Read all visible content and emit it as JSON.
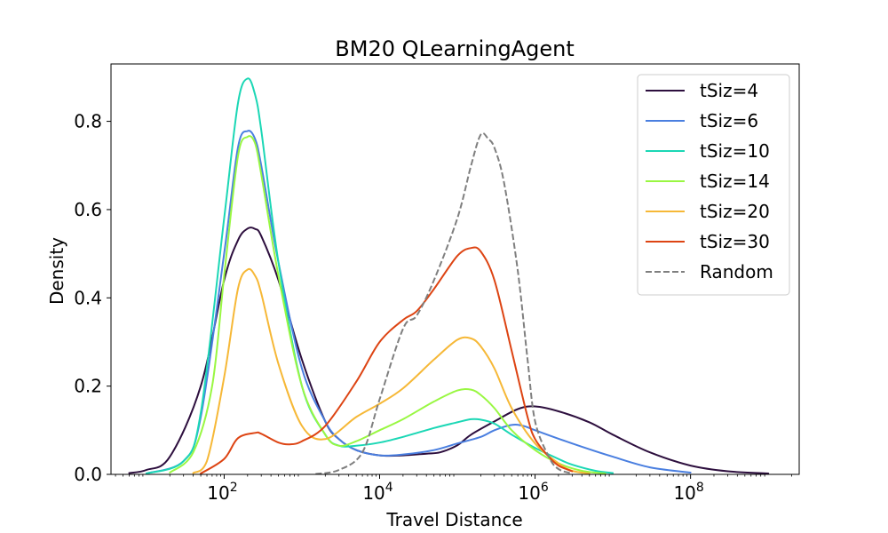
{
  "chart_data": {
    "type": "line",
    "title": "BM20 QLearningAgent",
    "xlabel": "Travel Distance",
    "ylabel": "Density",
    "x_scale": "log",
    "xlim": [
      3.5,
      2500000000.0
    ],
    "ylim": [
      0,
      0.93
    ],
    "x_ticks": [
      {
        "value": 100,
        "base": "10",
        "exp": "2"
      },
      {
        "value": 10000,
        "base": "10",
        "exp": "4"
      },
      {
        "value": 1000000,
        "base": "10",
        "exp": "6"
      },
      {
        "value": 100000000,
        "base": "10",
        "exp": "8"
      }
    ],
    "y_ticks": [
      {
        "value": 0.0,
        "label": "0.0"
      },
      {
        "value": 0.2,
        "label": "0.2"
      },
      {
        "value": 0.4,
        "label": "0.4"
      },
      {
        "value": 0.6,
        "label": "0.6"
      },
      {
        "value": 0.8,
        "label": "0.8"
      }
    ],
    "grid": false,
    "legend_position": "top-right",
    "series": [
      {
        "name": "tSiz=4",
        "color": "#2d0f3e",
        "dash": "solid",
        "points": [
          [
            6,
            0.003
          ],
          [
            10,
            0.01
          ],
          [
            20,
            0.04
          ],
          [
            50,
            0.2
          ],
          [
            100,
            0.44
          ],
          [
            150,
            0.53
          ],
          [
            200,
            0.557
          ],
          [
            250,
            0.556
          ],
          [
            300,
            0.54
          ],
          [
            500,
            0.44
          ],
          [
            1000,
            0.26
          ],
          [
            2000,
            0.12
          ],
          [
            3000,
            0.08
          ],
          [
            5000,
            0.055
          ],
          [
            10000,
            0.043
          ],
          [
            20000,
            0.043
          ],
          [
            40000,
            0.047
          ],
          [
            60000,
            0.05
          ],
          [
            100000,
            0.066
          ],
          [
            150000,
            0.09
          ],
          [
            300000,
            0.12
          ],
          [
            600000,
            0.148
          ],
          [
            1000000,
            0.154
          ],
          [
            2000000,
            0.143
          ],
          [
            5000000,
            0.118
          ],
          [
            10000000,
            0.09
          ],
          [
            30000000,
            0.05
          ],
          [
            100000000,
            0.02
          ],
          [
            300000000,
            0.007
          ],
          [
            1000000000.0,
            0.002
          ]
        ]
      },
      {
        "name": "tSiz=6",
        "color": "#4a7fe0",
        "dash": "solid",
        "points": [
          [
            10,
            0.002
          ],
          [
            30,
            0.03
          ],
          [
            50,
            0.13
          ],
          [
            100,
            0.5
          ],
          [
            150,
            0.74
          ],
          [
            200,
            0.778
          ],
          [
            250,
            0.76
          ],
          [
            300,
            0.7
          ],
          [
            500,
            0.48
          ],
          [
            1000,
            0.24
          ],
          [
            2000,
            0.12
          ],
          [
            3000,
            0.08
          ],
          [
            5000,
            0.055
          ],
          [
            10000,
            0.043
          ],
          [
            20000,
            0.045
          ],
          [
            50000,
            0.055
          ],
          [
            100000,
            0.07
          ],
          [
            200000,
            0.085
          ],
          [
            300000,
            0.1
          ],
          [
            500000,
            0.112
          ],
          [
            700000,
            0.11
          ],
          [
            1000000,
            0.1
          ],
          [
            3000000,
            0.07
          ],
          [
            10000000,
            0.04
          ],
          [
            30000000,
            0.016
          ],
          [
            100000000,
            0.004
          ]
        ]
      },
      {
        "name": "tSiz=10",
        "color": "#1bd7b5",
        "dash": "solid",
        "points": [
          [
            10,
            0.002
          ],
          [
            30,
            0.03
          ],
          [
            50,
            0.14
          ],
          [
            100,
            0.58
          ],
          [
            150,
            0.84
          ],
          [
            200,
            0.897
          ],
          [
            250,
            0.86
          ],
          [
            300,
            0.78
          ],
          [
            500,
            0.48
          ],
          [
            1000,
            0.2
          ],
          [
            2000,
            0.09
          ],
          [
            3000,
            0.065
          ],
          [
            5000,
            0.065
          ],
          [
            10000,
            0.072
          ],
          [
            20000,
            0.085
          ],
          [
            50000,
            0.105
          ],
          [
            100000,
            0.118
          ],
          [
            150000,
            0.125
          ],
          [
            200000,
            0.124
          ],
          [
            300000,
            0.115
          ],
          [
            500000,
            0.09
          ],
          [
            1000000,
            0.06
          ],
          [
            2000000,
            0.035
          ],
          [
            3000000,
            0.022
          ],
          [
            6000000,
            0.008
          ],
          [
            10000000,
            0.003
          ]
        ]
      },
      {
        "name": "tSiz=14",
        "color": "#99f742",
        "dash": "solid",
        "points": [
          [
            20,
            0.004
          ],
          [
            40,
            0.05
          ],
          [
            70,
            0.2
          ],
          [
            100,
            0.45
          ],
          [
            150,
            0.72
          ],
          [
            200,
            0.765
          ],
          [
            250,
            0.75
          ],
          [
            300,
            0.68
          ],
          [
            500,
            0.45
          ],
          [
            1000,
            0.2
          ],
          [
            2000,
            0.09
          ],
          [
            3000,
            0.065
          ],
          [
            5000,
            0.075
          ],
          [
            10000,
            0.1
          ],
          [
            20000,
            0.125
          ],
          [
            50000,
            0.165
          ],
          [
            100000,
            0.19
          ],
          [
            150000,
            0.192
          ],
          [
            200000,
            0.18
          ],
          [
            300000,
            0.15
          ],
          [
            500000,
            0.1
          ],
          [
            1000000,
            0.055
          ],
          [
            2000000,
            0.025
          ],
          [
            4000000,
            0.008
          ],
          [
            8000000,
            0.002
          ]
        ]
      },
      {
        "name": "tSiz=20",
        "color": "#f6b837",
        "dash": "solid",
        "points": [
          [
            40,
            0.003
          ],
          [
            60,
            0.03
          ],
          [
            100,
            0.22
          ],
          [
            150,
            0.42
          ],
          [
            200,
            0.464
          ],
          [
            250,
            0.45
          ],
          [
            300,
            0.41
          ],
          [
            500,
            0.25
          ],
          [
            1000,
            0.11
          ],
          [
            2000,
            0.08
          ],
          [
            5000,
            0.13
          ],
          [
            10000,
            0.16
          ],
          [
            20000,
            0.195
          ],
          [
            50000,
            0.26
          ],
          [
            100000,
            0.305
          ],
          [
            150000,
            0.308
          ],
          [
            200000,
            0.29
          ],
          [
            300000,
            0.24
          ],
          [
            500000,
            0.15
          ],
          [
            1000000,
            0.07
          ],
          [
            2000000,
            0.025
          ],
          [
            3000000,
            0.008
          ],
          [
            5000000,
            0.002
          ]
        ]
      },
      {
        "name": "tSiz=30",
        "color": "#dd4413",
        "dash": "solid",
        "points": [
          [
            50,
            0.002
          ],
          [
            100,
            0.035
          ],
          [
            150,
            0.082
          ],
          [
            250,
            0.094
          ],
          [
            300,
            0.092
          ],
          [
            500,
            0.072
          ],
          [
            700,
            0.068
          ],
          [
            1000,
            0.075
          ],
          [
            2000,
            0.11
          ],
          [
            5000,
            0.21
          ],
          [
            10000,
            0.3
          ],
          [
            20000,
            0.35
          ],
          [
            30000,
            0.37
          ],
          [
            50000,
            0.42
          ],
          [
            100000,
            0.495
          ],
          [
            150000,
            0.513
          ],
          [
            200000,
            0.505
          ],
          [
            300000,
            0.44
          ],
          [
            500000,
            0.28
          ],
          [
            800000,
            0.13
          ],
          [
            1000000,
            0.08
          ],
          [
            1500000,
            0.04
          ],
          [
            2000000,
            0.02
          ],
          [
            3000000,
            0.007
          ]
        ]
      },
      {
        "name": "Random",
        "color": "#7f7f7f",
        "dash": "dashed",
        "points": [
          [
            1500,
            0.001
          ],
          [
            3000,
            0.01
          ],
          [
            6000,
            0.05
          ],
          [
            10000,
            0.17
          ],
          [
            20000,
            0.33
          ],
          [
            30000,
            0.36
          ],
          [
            50000,
            0.44
          ],
          [
            100000,
            0.58
          ],
          [
            150000,
            0.7
          ],
          [
            200000,
            0.77
          ],
          [
            250000,
            0.76
          ],
          [
            300000,
            0.74
          ],
          [
            400000,
            0.66
          ],
          [
            600000,
            0.46
          ],
          [
            800000,
            0.26
          ],
          [
            1000000,
            0.12
          ],
          [
            1500000,
            0.04
          ],
          [
            2000000,
            0.012
          ],
          [
            3000000,
            0.002
          ]
        ]
      }
    ]
  }
}
